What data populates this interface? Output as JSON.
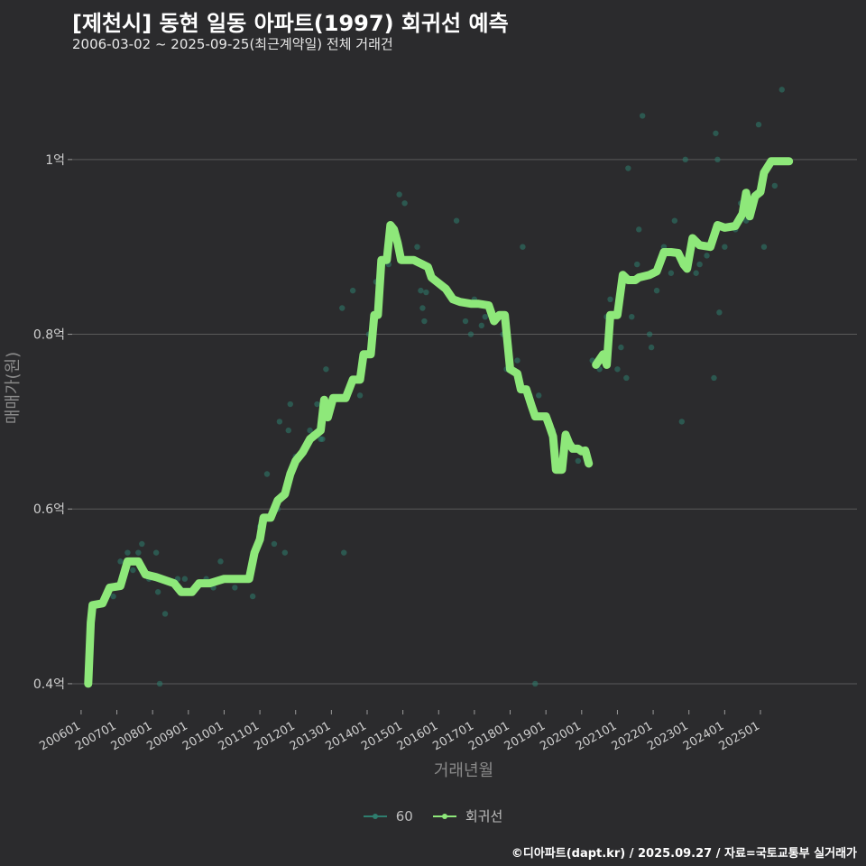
{
  "title": "[제천시] 동현 일동 아파트(1997) 회귀선 예측",
  "subtitle": "2006-03-02 ~ 2025-09-25(최근계약일) 전체 거래건",
  "footer": "©디아파트(dapt.kr) / 2025.09.27 / 자료=국토교통부 실거래가",
  "colors": {
    "background": "#2b2b2d",
    "scatter": "#2e7d6e",
    "regression": "#8ee87a",
    "grid": "#5a5a5a"
  },
  "legend": [
    {
      "label": "60",
      "color": "#2e7d6e"
    },
    {
      "label": "회귀선",
      "color": "#8ee87a"
    }
  ],
  "chart_data": {
    "type": "scatter",
    "xlabel": "거래년월",
    "ylabel": "매매가(원)",
    "xlim": [
      2005.75,
      2027.7
    ],
    "ylim": [
      0.37,
      1.1
    ],
    "unit": "억",
    "grid": true,
    "legend_position": "bottom",
    "x_ticks": [
      {
        "value": 2006.0,
        "label": "200601"
      },
      {
        "value": 2007.0,
        "label": "200701"
      },
      {
        "value": 2008.0,
        "label": "200801"
      },
      {
        "value": 2009.0,
        "label": "200901"
      },
      {
        "value": 2010.0,
        "label": "201001"
      },
      {
        "value": 2011.0,
        "label": "201101"
      },
      {
        "value": 2012.0,
        "label": "201201"
      },
      {
        "value": 2013.0,
        "label": "201301"
      },
      {
        "value": 2014.0,
        "label": "201401"
      },
      {
        "value": 2015.0,
        "label": "201501"
      },
      {
        "value": 2016.0,
        "label": "201601"
      },
      {
        "value": 2017.0,
        "label": "201701"
      },
      {
        "value": 2018.0,
        "label": "201801"
      },
      {
        "value": 2019.0,
        "label": "201901"
      },
      {
        "value": 2020.0,
        "label": "202001"
      },
      {
        "value": 2021.0,
        "label": "202101"
      },
      {
        "value": 2022.0,
        "label": "202201"
      },
      {
        "value": 2023.0,
        "label": "202301"
      },
      {
        "value": 2024.0,
        "label": "202401"
      },
      {
        "value": 2025.0,
        "label": "202501"
      }
    ],
    "y_ticks": [
      {
        "value": 0.4,
        "label": "0.4억"
      },
      {
        "value": 0.6,
        "label": "0.6억"
      },
      {
        "value": 0.8,
        "label": "0.8억"
      },
      {
        "value": 1.0,
        "label": "1억"
      }
    ],
    "series": [
      {
        "name": "60",
        "kind": "scatter",
        "points": [
          [
            2006.2,
            0.4
          ],
          [
            2006.4,
            0.49
          ],
          [
            2006.8,
            0.51
          ],
          [
            2006.9,
            0.5
          ],
          [
            2007.1,
            0.54
          ],
          [
            2007.3,
            0.55
          ],
          [
            2007.45,
            0.53
          ],
          [
            2007.6,
            0.55
          ],
          [
            2007.7,
            0.56
          ],
          [
            2007.9,
            0.52
          ],
          [
            2008.1,
            0.55
          ],
          [
            2008.15,
            0.505
          ],
          [
            2008.2,
            0.4
          ],
          [
            2008.35,
            0.48
          ],
          [
            2008.7,
            0.52
          ],
          [
            2008.9,
            0.52
          ],
          [
            2009.1,
            0.505
          ],
          [
            2009.3,
            0.515
          ],
          [
            2009.5,
            0.52
          ],
          [
            2009.7,
            0.51
          ],
          [
            2009.9,
            0.54
          ],
          [
            2010.0,
            0.52
          ],
          [
            2010.3,
            0.51
          ],
          [
            2010.6,
            0.52
          ],
          [
            2010.7,
            0.52
          ],
          [
            2010.8,
            0.5
          ],
          [
            2011.0,
            0.58
          ],
          [
            2011.1,
            0.59
          ],
          [
            2011.2,
            0.64
          ],
          [
            2011.4,
            0.56
          ],
          [
            2011.5,
            0.6
          ],
          [
            2011.55,
            0.7
          ],
          [
            2011.7,
            0.55
          ],
          [
            2011.8,
            0.69
          ],
          [
            2011.85,
            0.72
          ],
          [
            2012.0,
            0.66
          ],
          [
            2012.4,
            0.69
          ],
          [
            2012.6,
            0.72
          ],
          [
            2012.7,
            0.68
          ],
          [
            2012.75,
            0.68
          ],
          [
            2012.85,
            0.76
          ],
          [
            2013.3,
            0.83
          ],
          [
            2013.35,
            0.55
          ],
          [
            2013.6,
            0.85
          ],
          [
            2013.8,
            0.73
          ],
          [
            2014.05,
            0.8
          ],
          [
            2014.25,
            0.86
          ],
          [
            2014.6,
            0.88
          ],
          [
            2014.9,
            0.96
          ],
          [
            2015.05,
            0.95
          ],
          [
            2015.4,
            0.9
          ],
          [
            2015.5,
            0.85
          ],
          [
            2015.55,
            0.83
          ],
          [
            2015.6,
            0.815
          ],
          [
            2015.65,
            0.848
          ],
          [
            2015.8,
            0.87
          ],
          [
            2016.4,
            0.84
          ],
          [
            2016.5,
            0.93
          ],
          [
            2016.75,
            0.815
          ],
          [
            2016.9,
            0.8
          ],
          [
            2017.0,
            0.84
          ],
          [
            2017.2,
            0.81
          ],
          [
            2017.3,
            0.82
          ],
          [
            2017.8,
            0.8
          ],
          [
            2017.9,
            0.76
          ],
          [
            2018.2,
            0.77
          ],
          [
            2018.35,
            0.9
          ],
          [
            2018.55,
            0.73
          ],
          [
            2018.7,
            0.4
          ],
          [
            2018.8,
            0.73
          ],
          [
            2019.2,
            0.69
          ],
          [
            2019.5,
            0.675
          ],
          [
            2019.8,
            0.67
          ],
          [
            2019.9,
            0.655
          ],
          [
            2020.3,
            0.77
          ],
          [
            2020.5,
            0.76
          ],
          [
            2020.7,
            0.82
          ],
          [
            2020.8,
            0.84
          ],
          [
            2021.0,
            0.76
          ],
          [
            2021.1,
            0.785
          ],
          [
            2021.25,
            0.75
          ],
          [
            2021.3,
            0.99
          ],
          [
            2021.4,
            0.82
          ],
          [
            2021.55,
            0.88
          ],
          [
            2021.6,
            0.92
          ],
          [
            2021.7,
            1.05
          ],
          [
            2021.9,
            0.8
          ],
          [
            2021.95,
            0.785
          ],
          [
            2022.1,
            0.85
          ],
          [
            2022.3,
            0.9
          ],
          [
            2022.5,
            0.87
          ],
          [
            2022.6,
            0.93
          ],
          [
            2022.8,
            0.7
          ],
          [
            2022.9,
            1.0
          ],
          [
            2023.0,
            0.89
          ],
          [
            2023.2,
            0.87
          ],
          [
            2023.3,
            0.88
          ],
          [
            2023.5,
            0.89
          ],
          [
            2023.7,
            0.75
          ],
          [
            2023.75,
            1.03
          ],
          [
            2023.8,
            1.0
          ],
          [
            2023.85,
            0.825
          ],
          [
            2024.0,
            0.9
          ],
          [
            2024.3,
            0.92
          ],
          [
            2024.45,
            0.95
          ],
          [
            2024.6,
            0.93
          ],
          [
            2024.8,
            0.95
          ],
          [
            2024.85,
            0.96
          ],
          [
            2024.95,
            1.04
          ],
          [
            2025.1,
            0.9
          ],
          [
            2025.4,
            0.97
          ],
          [
            2025.6,
            1.08
          ]
        ]
      },
      {
        "name": "회귀선",
        "kind": "line",
        "segments": [
          [
            [
              2006.2,
              0.4
            ],
            [
              2006.27,
              0.47
            ],
            [
              2006.32,
              0.49
            ],
            [
              2006.6,
              0.492
            ],
            [
              2006.8,
              0.51
            ],
            [
              2007.1,
              0.512
            ],
            [
              2007.3,
              0.54
            ],
            [
              2007.6,
              0.54
            ],
            [
              2007.8,
              0.525
            ],
            [
              2008.1,
              0.522
            ],
            [
              2008.6,
              0.515
            ],
            [
              2008.8,
              0.505
            ],
            [
              2009.1,
              0.505
            ],
            [
              2009.3,
              0.515
            ],
            [
              2009.6,
              0.515
            ],
            [
              2010.0,
              0.52
            ],
            [
              2010.5,
              0.52
            ],
            [
              2010.7,
              0.52
            ],
            [
              2010.85,
              0.55
            ],
            [
              2011.0,
              0.565
            ],
            [
              2011.1,
              0.59
            ],
            [
              2011.3,
              0.59
            ],
            [
              2011.5,
              0.61
            ],
            [
              2011.7,
              0.617
            ],
            [
              2011.85,
              0.64
            ],
            [
              2012.0,
              0.655
            ],
            [
              2012.2,
              0.665
            ],
            [
              2012.4,
              0.68
            ],
            [
              2012.7,
              0.69
            ],
            [
              2012.8,
              0.725
            ],
            [
              2012.9,
              0.705
            ],
            [
              2013.05,
              0.727
            ],
            [
              2013.4,
              0.727
            ],
            [
              2013.6,
              0.748
            ],
            [
              2013.8,
              0.748
            ],
            [
              2013.9,
              0.777
            ],
            [
              2014.1,
              0.777
            ],
            [
              2014.2,
              0.822
            ],
            [
              2014.3,
              0.822
            ],
            [
              2014.4,
              0.885
            ],
            [
              2014.55,
              0.885
            ],
            [
              2014.65,
              0.925
            ],
            [
              2014.75,
              0.92
            ],
            [
              2014.85,
              0.905
            ],
            [
              2014.95,
              0.885
            ],
            [
              2015.3,
              0.885
            ],
            [
              2015.4,
              0.883
            ],
            [
              2015.7,
              0.877
            ],
            [
              2015.8,
              0.865
            ],
            [
              2015.95,
              0.86
            ],
            [
              2016.2,
              0.852
            ],
            [
              2016.4,
              0.84
            ],
            [
              2016.6,
              0.837
            ],
            [
              2016.9,
              0.835
            ],
            [
              2017.1,
              0.835
            ],
            [
              2017.4,
              0.833
            ],
            [
              2017.55,
              0.815
            ],
            [
              2017.7,
              0.822
            ],
            [
              2017.85,
              0.822
            ],
            [
              2018.0,
              0.76
            ],
            [
              2018.2,
              0.755
            ],
            [
              2018.3,
              0.737
            ],
            [
              2018.45,
              0.737
            ],
            [
              2018.6,
              0.718
            ],
            [
              2018.7,
              0.706
            ],
            [
              2019.0,
              0.706
            ],
            [
              2019.1,
              0.695
            ],
            [
              2019.2,
              0.683
            ],
            [
              2019.28,
              0.645
            ],
            [
              2019.45,
              0.645
            ],
            [
              2019.55,
              0.685
            ],
            [
              2019.65,
              0.675
            ],
            [
              2019.75,
              0.669
            ],
            [
              2019.9,
              0.669
            ],
            [
              2020.0,
              0.666
            ],
            [
              2020.1,
              0.667
            ],
            [
              2020.2,
              0.652
            ]
          ],
          [
            [
              2020.4,
              0.765
            ],
            [
              2020.6,
              0.777
            ],
            [
              2020.7,
              0.765
            ],
            [
              2020.8,
              0.822
            ],
            [
              2021.0,
              0.822
            ],
            [
              2021.15,
              0.868
            ],
            [
              2021.3,
              0.862
            ],
            [
              2021.5,
              0.862
            ],
            [
              2021.6,
              0.865
            ],
            [
              2021.9,
              0.868
            ],
            [
              2022.1,
              0.872
            ],
            [
              2022.3,
              0.894
            ],
            [
              2022.5,
              0.894
            ],
            [
              2022.7,
              0.893
            ],
            [
              2022.85,
              0.88
            ],
            [
              2022.95,
              0.875
            ],
            [
              2023.1,
              0.91
            ],
            [
              2023.3,
              0.902
            ],
            [
              2023.6,
              0.9
            ],
            [
              2023.8,
              0.925
            ],
            [
              2024.0,
              0.922
            ],
            [
              2024.3,
              0.924
            ],
            [
              2024.5,
              0.938
            ],
            [
              2024.6,
              0.962
            ],
            [
              2024.7,
              0.935
            ],
            [
              2024.85,
              0.958
            ],
            [
              2025.0,
              0.963
            ],
            [
              2025.1,
              0.985
            ],
            [
              2025.3,
              0.998
            ],
            [
              2025.6,
              0.998
            ],
            [
              2025.8,
              0.998
            ]
          ]
        ]
      }
    ]
  }
}
